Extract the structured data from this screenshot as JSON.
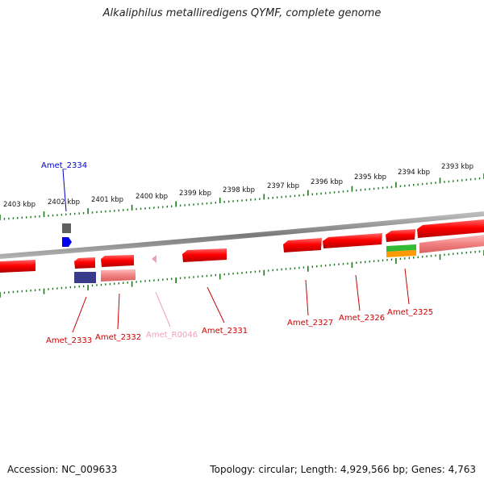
{
  "title": "Alkaliphilus metalliredigens QYMF, complete genome",
  "accession": "Accession: NC_009633",
  "summary": "Topology: circular; Length: 4,929,566 bp; Genes: 4,763",
  "colors": {
    "backbone": "#808080",
    "tick": "#1a7a1a",
    "gene_forward": "#ff0000",
    "gene_reverse": "#f58a8a",
    "label_red": "#cc0000",
    "label_blue": "#0000cc",
    "label_pink": "#f0a0c0",
    "gene_grey": "#606060",
    "gene_blue": "#0000ee",
    "gene_navy": "#3a3a8a",
    "gene_green": "#33bb33",
    "gene_orange": "#ff9900"
  },
  "scale_ticks": [
    {
      "label": "2403 kbp"
    },
    {
      "label": "2402 kbp"
    },
    {
      "label": "2401 kbp"
    },
    {
      "label": "2400 kbp"
    },
    {
      "label": "2399 kbp"
    },
    {
      "label": "2398 kbp"
    },
    {
      "label": "2397 kbp"
    },
    {
      "label": "2396 kbp"
    },
    {
      "label": "2395 kbp"
    },
    {
      "label": "2394 kbp"
    },
    {
      "label": "2393 kbp"
    }
  ],
  "gene_labels": [
    {
      "text": "Amet_2334",
      "color": "blue"
    },
    {
      "text": "Amet_2333",
      "color": "red"
    },
    {
      "text": "Amet_2332",
      "color": "red"
    },
    {
      "text": "Amet_R0046",
      "color": "pink"
    },
    {
      "text": "Amet_2331",
      "color": "red"
    },
    {
      "text": "Amet_2327",
      "color": "red"
    },
    {
      "text": "Amet_2326",
      "color": "red"
    },
    {
      "text": "Amet_2325",
      "color": "red"
    }
  ]
}
